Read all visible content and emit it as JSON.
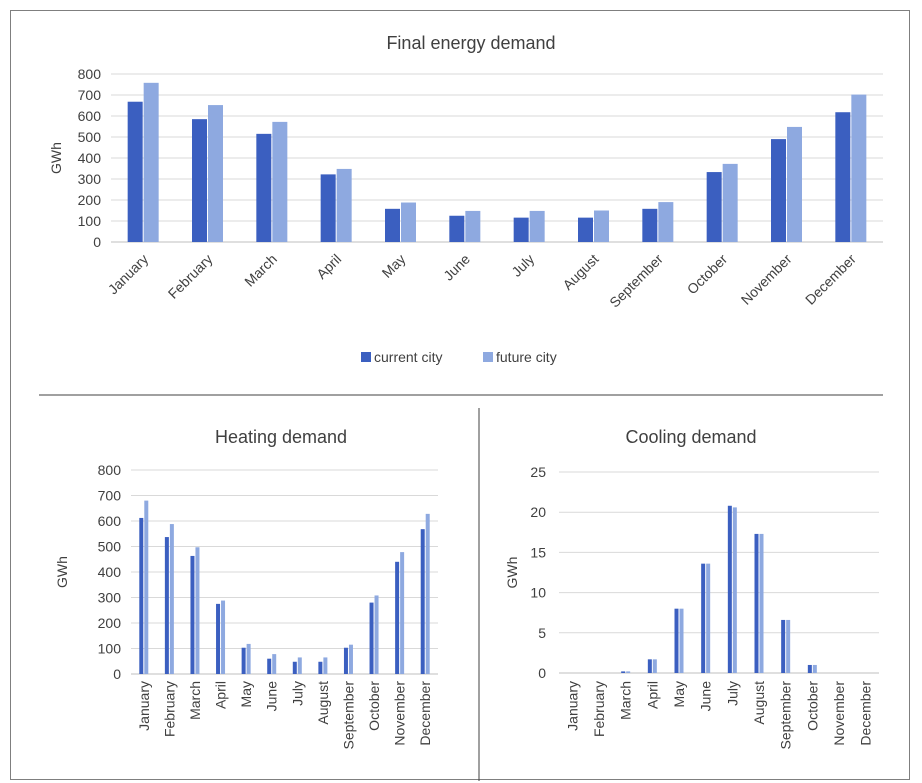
{
  "colors": {
    "current": "#3b5fc0",
    "future": "#8ea9e0",
    "grid": "#d9d9d9",
    "axis": "#bfbfbf",
    "text": "#404040"
  },
  "legend": {
    "current": "current city",
    "future": "future city"
  },
  "chart_data": [
    {
      "type": "bar",
      "title": "Final energy demand",
      "ylabel": "GWh",
      "ylim": [
        0,
        800
      ],
      "yticks": [
        0,
        100,
        200,
        300,
        400,
        500,
        600,
        700,
        800
      ],
      "categories": [
        "January",
        "February",
        "March",
        "April",
        "May",
        "June",
        "July",
        "August",
        "September",
        "October",
        "November",
        "December"
      ],
      "series": [
        {
          "name": "current city",
          "values": [
            668,
            585,
            515,
            322,
            158,
            125,
            116,
            116,
            158,
            333,
            490,
            618
          ]
        },
        {
          "name": "future city",
          "values": [
            758,
            652,
            572,
            348,
            188,
            148,
            148,
            150,
            190,
            372,
            548,
            702
          ]
        }
      ],
      "grid": true,
      "legend_position": "bottom"
    },
    {
      "type": "bar",
      "title": "Heating demand",
      "ylabel": "GWh",
      "ylim": [
        0,
        800
      ],
      "yticks": [
        0,
        100,
        200,
        300,
        400,
        500,
        600,
        700,
        800
      ],
      "categories": [
        "January",
        "February",
        "March",
        "April",
        "May",
        "June",
        "July",
        "August",
        "September",
        "October",
        "November",
        "December"
      ],
      "series": [
        {
          "name": "current city",
          "values": [
            612,
            537,
            463,
            275,
            103,
            60,
            48,
            48,
            103,
            280,
            440,
            568
          ]
        },
        {
          "name": "future city",
          "values": [
            680,
            588,
            497,
            288,
            118,
            78,
            65,
            65,
            115,
            308,
            478,
            628
          ]
        }
      ],
      "grid": true
    },
    {
      "type": "bar",
      "title": "Cooling demand",
      "ylabel": "GWh",
      "ylim": [
        0,
        25
      ],
      "yticks": [
        0,
        5,
        10,
        15,
        20,
        25
      ],
      "categories": [
        "January",
        "February",
        "March",
        "April",
        "May",
        "June",
        "July",
        "August",
        "September",
        "October",
        "November",
        "December"
      ],
      "series": [
        {
          "name": "current city",
          "values": [
            0,
            0,
            0.2,
            1.7,
            8.0,
            13.6,
            20.8,
            17.3,
            6.6,
            1.0,
            0,
            0
          ]
        },
        {
          "name": "future city",
          "values": [
            0,
            0,
            0.2,
            1.7,
            8.0,
            13.6,
            20.6,
            17.3,
            6.6,
            1.0,
            0,
            0
          ]
        }
      ],
      "grid": true
    }
  ]
}
